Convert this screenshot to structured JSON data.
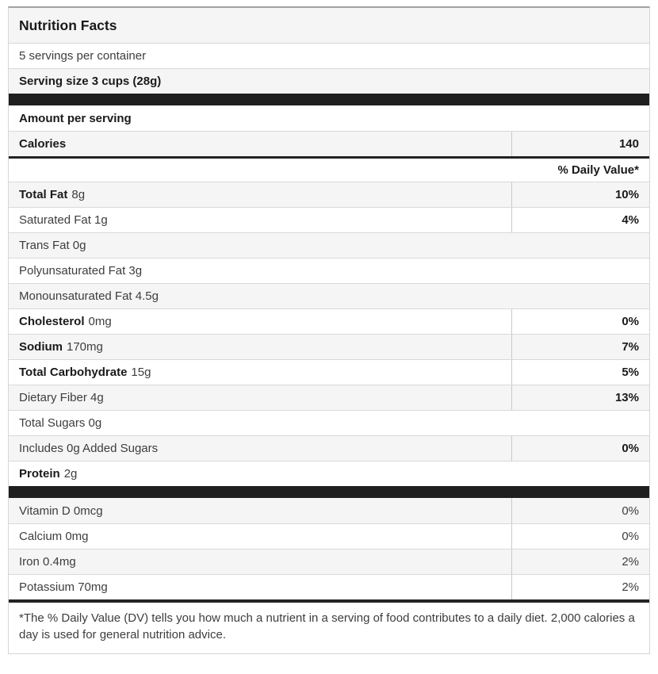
{
  "nutrition_label": {
    "title": "Nutrition Facts",
    "servings_per_container": "5 servings per container",
    "serving_size": "Serving size 3 cups (28g)",
    "amount_per_serving": "Amount per serving",
    "calories": {
      "label": "Calories",
      "value": "140"
    },
    "daily_value_header": "% Daily Value*",
    "nutrients": [
      {
        "id": "total-fat",
        "bold": "Total Fat",
        "text": "8g",
        "value": "10%",
        "value_bold": true,
        "shaded": true
      },
      {
        "id": "saturated-fat",
        "bold": "",
        "text": "Saturated Fat 1g",
        "value": "4%",
        "value_bold": true,
        "shaded": false
      },
      {
        "id": "trans-fat",
        "bold": "",
        "text": "Trans Fat 0g",
        "value": "",
        "value_bold": false,
        "shaded": true
      },
      {
        "id": "polyunsaturated-fat",
        "bold": "",
        "text": "Polyunsaturated Fat 3g",
        "value": "",
        "value_bold": false,
        "shaded": false
      },
      {
        "id": "monounsaturated-fat",
        "bold": "",
        "text": "Monounsaturated Fat 4.5g",
        "value": "",
        "value_bold": false,
        "shaded": true
      },
      {
        "id": "cholesterol",
        "bold": "Cholesterol",
        "text": "0mg",
        "value": "0%",
        "value_bold": true,
        "shaded": false
      },
      {
        "id": "sodium",
        "bold": "Sodium",
        "text": "170mg",
        "value": "7%",
        "value_bold": true,
        "shaded": true
      },
      {
        "id": "total-carbohydrate",
        "bold": "Total Carbohydrate",
        "text": "15g",
        "value": "5%",
        "value_bold": true,
        "shaded": false
      },
      {
        "id": "dietary-fiber",
        "bold": "",
        "text": "Dietary Fiber 4g",
        "value": "13%",
        "value_bold": true,
        "shaded": true
      },
      {
        "id": "total-sugars",
        "bold": "",
        "text": "Total Sugars 0g",
        "value": "",
        "value_bold": false,
        "shaded": false
      },
      {
        "id": "added-sugars",
        "bold": "",
        "text": "Includes 0g Added Sugars",
        "value": "0%",
        "value_bold": true,
        "shaded": true
      },
      {
        "id": "protein",
        "bold": "Protein",
        "text": "2g",
        "value": "",
        "value_bold": false,
        "shaded": false
      }
    ],
    "vitamins": [
      {
        "id": "vitamin-d",
        "bold": "",
        "text": "Vitamin D 0mcg",
        "value": "0%",
        "value_bold": false,
        "shaded": true
      },
      {
        "id": "calcium",
        "bold": "",
        "text": "Calcium 0mg",
        "value": "0%",
        "value_bold": false,
        "shaded": false
      },
      {
        "id": "iron",
        "bold": "",
        "text": "Iron 0.4mg",
        "value": "2%",
        "value_bold": false,
        "shaded": true
      },
      {
        "id": "potassium",
        "bold": "",
        "text": "Potassium 70mg",
        "value": "2%",
        "value_bold": false,
        "shaded": false
      }
    ],
    "footnote": "*The % Daily Value (DV) tells you how much a nutrient in a serving of food contributes to a daily diet. 2,000 calories a day is used for general nutrition advice.",
    "colors": {
      "shaded_row": "#f5f5f5",
      "bar": "#1f1f1f",
      "thick_border": "#232323",
      "thin_border": "#d9d9d9",
      "text_bold": "#1a1a1a",
      "text_regular": "#3d3d3d"
    }
  }
}
